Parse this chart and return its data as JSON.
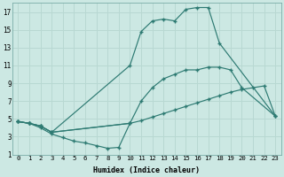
{
  "xlabel": "Humidex (Indice chaleur)",
  "xlim": [
    -0.5,
    23.5
  ],
  "ylim": [
    1,
    18
  ],
  "xticks": [
    0,
    1,
    2,
    3,
    4,
    5,
    6,
    7,
    8,
    9,
    10,
    11,
    12,
    13,
    14,
    15,
    16,
    17,
    18,
    19,
    20,
    21,
    22,
    23
  ],
  "yticks": [
    1,
    3,
    5,
    7,
    9,
    11,
    13,
    15,
    17
  ],
  "bg_color": "#cce8e3",
  "line_color": "#2d7a72",
  "grid_color": "#b8d8d2",
  "lines": [
    {
      "x": [
        0,
        1,
        2,
        3,
        10,
        11,
        12,
        13,
        14,
        15,
        16,
        17,
        18,
        23
      ],
      "y": [
        4.7,
        4.5,
        4.2,
        3.5,
        11.0,
        14.8,
        16.0,
        16.2,
        16.0,
        17.3,
        17.5,
        17.5,
        13.5,
        5.3
      ]
    },
    {
      "x": [
        0,
        1,
        2,
        3,
        10,
        11,
        12,
        13,
        14,
        15,
        16,
        17,
        18,
        19,
        20,
        23
      ],
      "y": [
        4.7,
        4.5,
        4.2,
        3.5,
        4.5,
        7.0,
        8.5,
        9.5,
        10.0,
        10.5,
        10.5,
        10.8,
        10.8,
        10.5,
        8.5,
        5.3
      ]
    },
    {
      "x": [
        0,
        1,
        2,
        3,
        10,
        11,
        12,
        13,
        14,
        15,
        16,
        17,
        18,
        19,
        20,
        21,
        22,
        23
      ],
      "y": [
        4.7,
        4.5,
        4.2,
        3.5,
        4.5,
        4.8,
        5.2,
        5.6,
        6.0,
        6.4,
        6.8,
        7.2,
        7.6,
        8.0,
        8.3,
        8.5,
        8.7,
        5.3
      ]
    },
    {
      "x": [
        0,
        1,
        2,
        3,
        4,
        5,
        6,
        7,
        8,
        9,
        10
      ],
      "y": [
        4.7,
        4.5,
        4.0,
        3.3,
        2.9,
        2.5,
        2.3,
        2.0,
        1.7,
        1.8,
        4.5
      ]
    }
  ]
}
